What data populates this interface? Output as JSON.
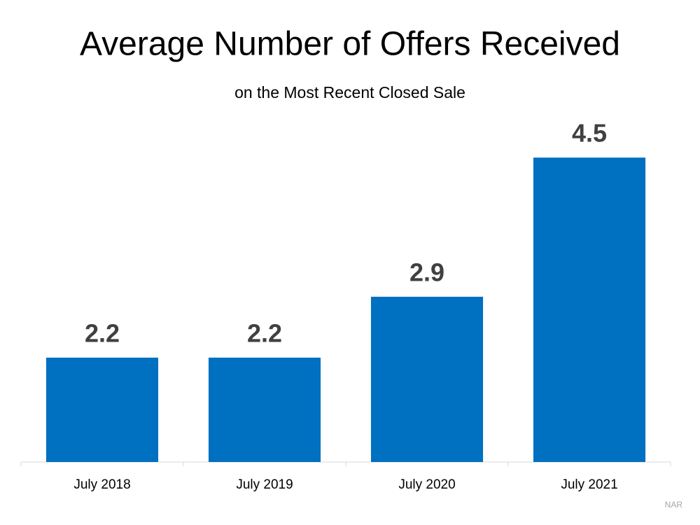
{
  "chart_data": {
    "type": "bar",
    "title": "Average Number of Offers Received",
    "subtitle": "on the Most Recent Closed Sale",
    "categories": [
      "July 2018",
      "July 2019",
      "July 2020",
      "July 2021"
    ],
    "values": [
      2.2,
      2.2,
      2.9,
      4.5
    ],
    "color": "#0070c0",
    "ylim": [
      1,
      5
    ],
    "source": "NAR"
  }
}
